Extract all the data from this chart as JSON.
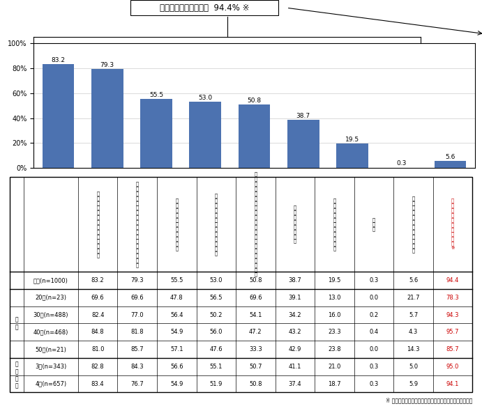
{
  "bar_values": [
    83.2,
    79.3,
    55.5,
    53.0,
    50.8,
    38.7,
    19.5,
    0.3,
    5.6
  ],
  "bar_color": "#4C72B0",
  "yticks": [
    0,
    20,
    40,
    60,
    80,
    100
  ],
  "ytick_labels": [
    "0%",
    "20%",
    "40%",
    "60%",
    "80%",
    "100%"
  ],
  "annotation_box_text": "実践したいことがある  94.4% ※",
  "col_headers": [
    "食\n事\nの\n栄\n養\nバ\nラ\nン\nス\nに\n気\nを\n配\nる",
    "う\nが\nい\n・\n手\n洗\nい\n等\nで\nウ\nイ\nル\nス\n対\n策\nを\nす\nる",
    "予\n防\nワ\nク\nチ\nン\nを\n接\n種\nす\nる",
    "身\n体\nに\nよ\nい\n食\n品\nを\n取\nり\n入\nれ\nる",
    "加\n湿\nや\n空\n気\n清\n浄\nや\n空\n間\n除\n菌\nで\nウ\nイ\nル\nス\n対\n策\nを\nす\nる",
    "適\n度\nな\n運\n動\nを\nす\nる",
    "サ\nプ\nリ\nメ\nン\nト\nを\n摂\n取\nす\nる",
    "そ\nの\n他",
    "特\nに\n実\n践\nし\nた\nい\nこ\nと\nは\nな\nい",
    "実\n践\nし\nた\nい\nこ\nと\nが\nあ\nる\n※"
  ],
  "row_labels": [
    "全体(n=1000)",
    "20代(n=23)",
    "30代(n=488)",
    "40代(n=468)",
    "50代(n=21)",
    "3人(n=343)",
    "4人(n=657)"
  ],
  "group_labels_text": [
    "",
    "年\n代",
    "人\n家\n族\n数"
  ],
  "group_labels_rows": [
    [
      0
    ],
    [
      1,
      2,
      3,
      4
    ],
    [
      5,
      6
    ]
  ],
  "table_data": [
    [
      83.2,
      79.3,
      55.5,
      53.0,
      50.8,
      38.7,
      19.5,
      0.3,
      5.6,
      94.4
    ],
    [
      69.6,
      69.6,
      47.8,
      56.5,
      69.6,
      39.1,
      13.0,
      0.0,
      21.7,
      78.3
    ],
    [
      82.4,
      77.0,
      56.4,
      50.2,
      54.1,
      34.2,
      16.0,
      0.2,
      5.7,
      94.3
    ],
    [
      84.8,
      81.8,
      54.9,
      56.0,
      47.2,
      43.2,
      23.3,
      0.4,
      4.3,
      95.7
    ],
    [
      81.0,
      85.7,
      57.1,
      47.6,
      33.3,
      42.9,
      23.8,
      0.0,
      14.3,
      85.7
    ],
    [
      82.8,
      84.3,
      56.6,
      55.1,
      50.7,
      41.1,
      21.0,
      0.3,
      5.0,
      95.0
    ],
    [
      83.4,
      76.7,
      54.9,
      51.9,
      50.8,
      37.4,
      18.7,
      0.3,
      5.9,
      94.1
    ]
  ],
  "footnote": "※ 複数回答のため、各選択肢の計とは数値が一致しません"
}
